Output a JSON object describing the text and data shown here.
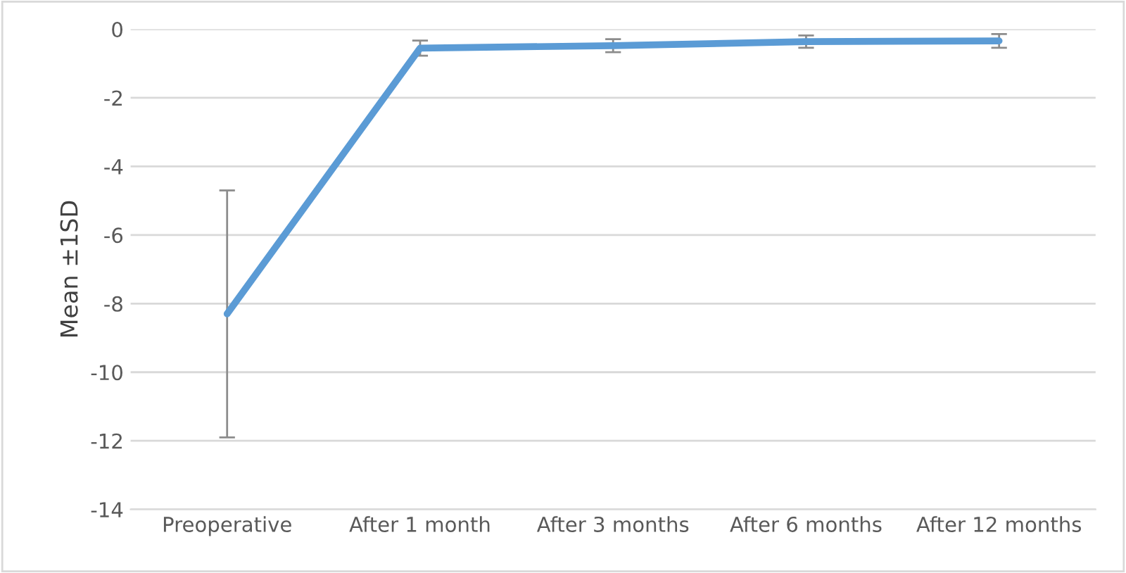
{
  "chart_data": {
    "type": "line",
    "ylabel": "Mean ±1SD",
    "categories": [
      "Preoperative",
      "After 1 month",
      "After 3 months",
      "After 6 months",
      "After 12 months"
    ],
    "series": [
      {
        "color": "#5b9bd5",
        "values": [
          -8.3,
          -0.55,
          -0.48,
          -0.36,
          -0.34
        ],
        "errors": [
          3.6,
          0.22,
          0.19,
          0.18,
          0.2
        ]
      }
    ],
    "ylim": [
      -14,
      0
    ],
    "yticks": [
      -14,
      -12,
      -10,
      -8,
      -6,
      -4,
      -2,
      0
    ],
    "grid": "y",
    "marker": "none",
    "line_style": "solid"
  }
}
